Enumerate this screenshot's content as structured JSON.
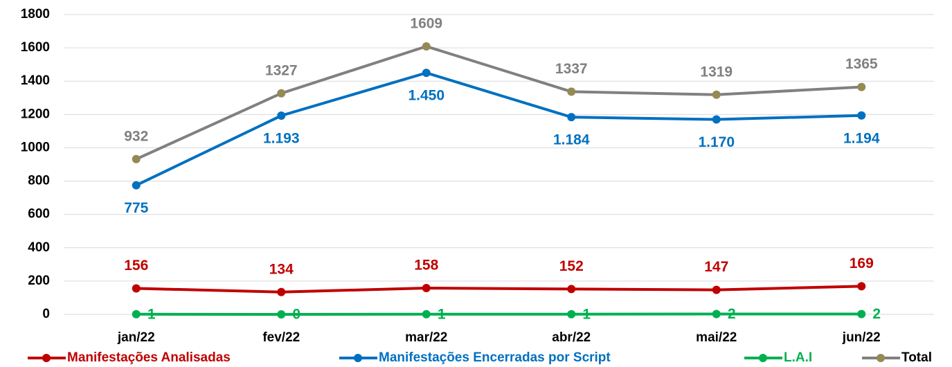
{
  "chart_data": {
    "type": "line",
    "categories": [
      "jan/22",
      "fev/22",
      "mar/22",
      "abr/22",
      "mai/22",
      "jun/22"
    ],
    "series": [
      {
        "name": "Manifestações Analisadas",
        "color": "#c00000",
        "label_position": "above",
        "values": [
          156,
          134,
          158,
          152,
          147,
          169
        ]
      },
      {
        "name": "Manifestações Encerradas por Script",
        "color": "#0070c0",
        "label_position": "below",
        "values": [
          775,
          1193,
          1450,
          1184,
          1170,
          1194
        ],
        "value_labels": [
          "775",
          "1.193",
          "1.450",
          "1.184",
          "1.170",
          "1.194"
        ]
      },
      {
        "name": "L.A.I",
        "color": "#00b050",
        "label_position": "right",
        "values": [
          1,
          0,
          1,
          1,
          2,
          2
        ]
      },
      {
        "name": "Total",
        "color": "#808080",
        "marker_color": "#948a54",
        "label_position": "above",
        "values": [
          932,
          1327,
          1609,
          1337,
          1319,
          1365
        ]
      }
    ],
    "ylim": [
      0,
      1800
    ],
    "yticks": [
      0,
      200,
      400,
      600,
      800,
      1000,
      1200,
      1400,
      1600,
      1800
    ],
    "grid": true,
    "legend": "bottom"
  }
}
